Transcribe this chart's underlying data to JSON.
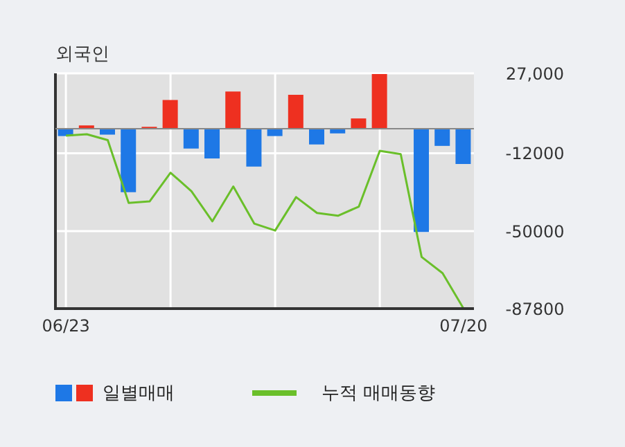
{
  "chart_data": {
    "type": "bar",
    "title": "외국인",
    "categories": [
      "06/23",
      null,
      null,
      null,
      null,
      null,
      null,
      null,
      null,
      null,
      null,
      null,
      null,
      null,
      null,
      null,
      null,
      null,
      null,
      "07/20"
    ],
    "series": [
      {
        "name": "일별매매",
        "colors": [
          "#1e78e6",
          "#ee3020",
          "#1e78e6",
          "#1e78e6",
          "#ee3020",
          "#ee3020",
          "#1e78e6",
          "#1e78e6",
          "#ee3020",
          "#1e78e6",
          "#1e78e6",
          "#ee3020",
          "#1e78e6",
          "#1e78e6",
          "#ee3020",
          "#ee3020",
          "#1e78e6",
          "#1e78e6",
          "#1e78e6",
          "#1e78e6"
        ],
        "values": [
          -3600,
          1600,
          -2900,
          -31000,
          900,
          14000,
          -9700,
          -14500,
          18100,
          -18500,
          -3600,
          16500,
          -7700,
          -2300,
          5000,
          26700,
          0,
          -50400,
          -8400,
          -17200
        ]
      },
      {
        "name": "누적 매매동향",
        "type": "line",
        "color": "#6abf2a",
        "values": [
          -3400,
          -2700,
          -5600,
          -36200,
          -35500,
          -21500,
          -30500,
          -45200,
          -28200,
          -46300,
          -49700,
          -33400,
          -41100,
          -42500,
          -38000,
          -10800,
          -12400,
          -62600,
          -70500,
          -87700
        ]
      }
    ],
    "ylim": [
      -87800,
      27000
    ],
    "yticks": [
      {
        "value": 27000,
        "label": "27,000"
      },
      -12000,
      -50000,
      -87800
    ],
    "grid": true,
    "legend": "bottom"
  }
}
